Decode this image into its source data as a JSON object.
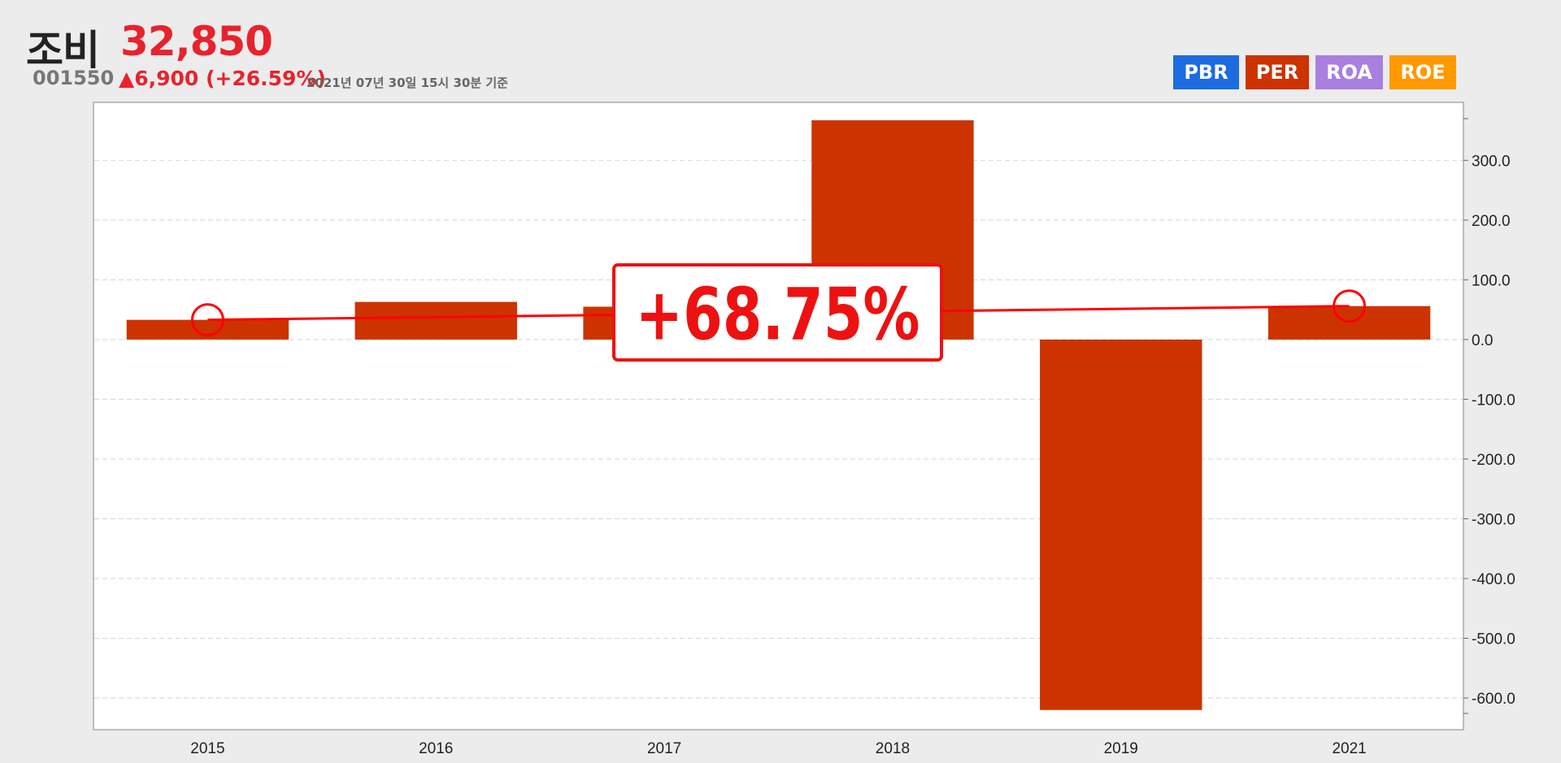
{
  "header": {
    "name": "조비",
    "price": "32,850",
    "code": "001550",
    "change": "▲6,900 (+26.59%)",
    "timestamp": "2021년 07년 30일 15시 30분 기준"
  },
  "tabs": [
    {
      "label": "PBR",
      "color": "#1e6be0"
    },
    {
      "label": "PER",
      "color": "#cc3300"
    },
    {
      "label": "ROA",
      "color": "#a97fe0"
    },
    {
      "label": "ROE",
      "color": "#ff9900"
    }
  ],
  "chart_data": {
    "type": "bar",
    "categories": [
      "2015",
      "2016",
      "2017",
      "2018",
      "2019",
      "2021"
    ],
    "series": [
      {
        "values": [
          33,
          63,
          55,
          367,
          -620,
          56
        ],
        "color": "#cc3300"
      }
    ],
    "trend_line": {
      "from_category": "2015",
      "to_category": "2021",
      "from_value": 33,
      "to_value": 56,
      "color": "#ff0000"
    },
    "annotation": "+68.75%",
    "yticks": [
      "300.0",
      "200.0",
      "100.0",
      "0.0",
      "-100.0",
      "-200.0",
      "-300.0",
      "-400.0",
      "-500.0",
      "-600.0"
    ],
    "ylim": [
      -653,
      397
    ],
    "grid": true,
    "yaxis_position": "right"
  }
}
